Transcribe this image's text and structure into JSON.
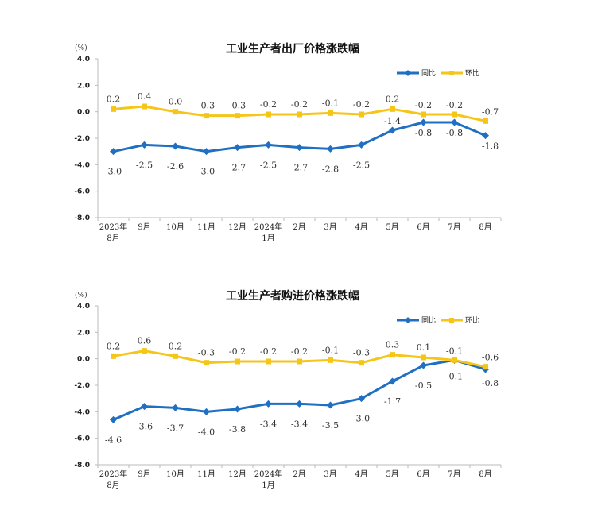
{
  "colors": {
    "yoy": "#1f6fc2",
    "mom": "#f5c518",
    "axis": "#bbbbbb"
  },
  "chart_data": [
    {
      "type": "line",
      "title": "工业生产者出厂价格涨跌幅",
      "unit": "(%)",
      "categories": [
        [
          "2023年",
          "8月"
        ],
        [
          "9月"
        ],
        [
          "10月"
        ],
        [
          "11月"
        ],
        [
          "12月"
        ],
        [
          "2024年",
          "1月"
        ],
        [
          "2月"
        ],
        [
          "3月"
        ],
        [
          "4月"
        ],
        [
          "5月"
        ],
        [
          "6月"
        ],
        [
          "7月"
        ],
        [
          "8月"
        ]
      ],
      "ylim": [
        -8.0,
        4.0
      ],
      "yticks": [
        "4.0",
        "2.0",
        "0.0",
        "-2.0",
        "-4.0",
        "-6.0",
        "-8.0"
      ],
      "ytick_values": [
        4,
        2,
        0,
        -2,
        -4,
        -6,
        -8
      ],
      "legend_position": "top-right",
      "series": [
        {
          "name": "同比",
          "color_key": "yoy",
          "marker": "diamond",
          "values": [
            -3.0,
            -2.5,
            -2.6,
            -3.0,
            -2.7,
            -2.5,
            -2.7,
            -2.8,
            -2.5,
            -1.4,
            -0.8,
            -0.8,
            -1.8
          ],
          "labels": [
            "-3.0",
            "-2.5",
            "-2.6",
            "-3.0",
            "-2.7",
            "-2.5",
            "-2.7",
            "-2.8",
            "-2.5",
            "-1.4",
            "-0.8",
            "-0.8",
            "-1.8"
          ]
        },
        {
          "name": "环比",
          "color_key": "mom",
          "marker": "square",
          "values": [
            0.2,
            0.4,
            0.0,
            -0.3,
            -0.3,
            -0.2,
            -0.2,
            -0.1,
            -0.2,
            0.2,
            -0.2,
            -0.2,
            -0.7
          ],
          "labels": [
            "0.2",
            "0.4",
            "0.0",
            "-0.3",
            "-0.3",
            "-0.2",
            "-0.2",
            "-0.1",
            "-0.2",
            "0.2",
            "-0.2",
            "-0.2",
            "-0.7"
          ]
        }
      ]
    },
    {
      "type": "line",
      "title": "工业生产者购进价格涨跌幅",
      "unit": "(%)",
      "categories": [
        [
          "2023年",
          "8月"
        ],
        [
          "9月"
        ],
        [
          "10月"
        ],
        [
          "11月"
        ],
        [
          "12月"
        ],
        [
          "2024年",
          "1月"
        ],
        [
          "2月"
        ],
        [
          "3月"
        ],
        [
          "4月"
        ],
        [
          "5月"
        ],
        [
          "6月"
        ],
        [
          "7月"
        ],
        [
          "8月"
        ]
      ],
      "ylim": [
        -8.0,
        4.0
      ],
      "yticks": [
        "4.0",
        "2.0",
        "0.0",
        "-2.0",
        "-4.0",
        "-6.0",
        "-8.0"
      ],
      "ytick_values": [
        4,
        2,
        0,
        -2,
        -4,
        -6,
        -8
      ],
      "legend_position": "top-right",
      "series": [
        {
          "name": "同比",
          "color_key": "yoy",
          "marker": "diamond",
          "values": [
            -4.6,
            -3.6,
            -3.7,
            -4.0,
            -3.8,
            -3.4,
            -3.4,
            -3.5,
            -3.0,
            -1.7,
            -0.5,
            -0.1,
            -0.8
          ],
          "labels": [
            "-4.6",
            "-3.6",
            "-3.7",
            "-4.0",
            "-3.8",
            "-3.4",
            "-3.4",
            "-3.5",
            "-3.0",
            "-1.7",
            "-0.5",
            "-0.1",
            "-0.8"
          ]
        },
        {
          "name": "环比",
          "color_key": "mom",
          "marker": "square",
          "values": [
            0.2,
            0.6,
            0.2,
            -0.3,
            -0.2,
            -0.2,
            -0.2,
            -0.1,
            -0.3,
            0.3,
            0.1,
            -0.1,
            -0.6
          ],
          "labels": [
            "0.2",
            "0.6",
            "0.2",
            "-0.3",
            "-0.2",
            "-0.2",
            "-0.2",
            "-0.1",
            "-0.3",
            "0.3",
            "0.1",
            "-0.1",
            "-0.6"
          ]
        }
      ]
    }
  ]
}
